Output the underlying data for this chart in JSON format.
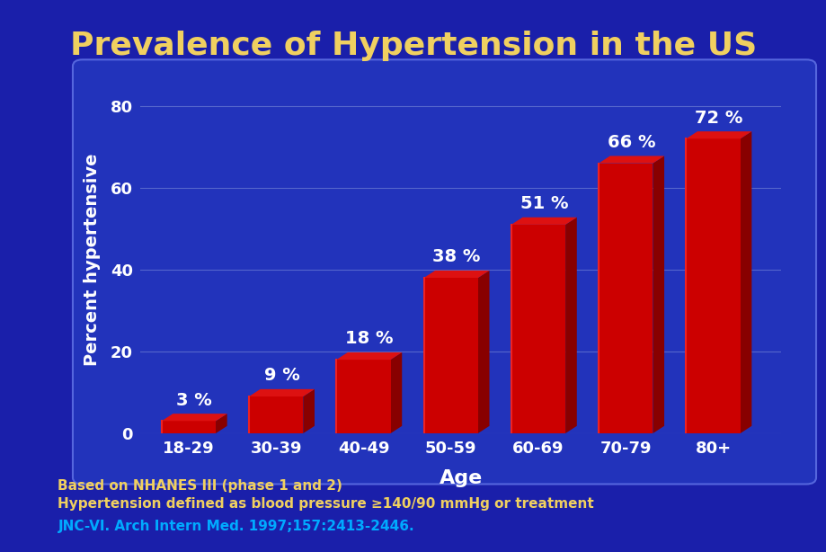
{
  "title": "Prevalence of Hypertension in the US",
  "categories": [
    "18-29",
    "30-39",
    "40-49",
    "50-59",
    "60-69",
    "70-79",
    "80+"
  ],
  "values": [
    3,
    9,
    18,
    38,
    51,
    66,
    72
  ],
  "xlabel": "Age",
  "ylabel": "Percent hypertensive",
  "ylim": [
    0,
    85
  ],
  "yticks": [
    0,
    20,
    40,
    60,
    80
  ],
  "background_color": "#1a1faa",
  "plot_bg_color": "#2233bb",
  "bar_face_color": "#cc0000",
  "bar_highlight_color": "#ee2222",
  "bar_dark_color": "#880000",
  "bar_top_color": "#dd1111",
  "title_color": "#f0d060",
  "axis_label_color": "#ffffff",
  "tick_label_color": "#ffffff",
  "bar_label_color": "#ffffff",
  "footer_color1": "#f0d060",
  "footer_color3": "#00aaff",
  "grid_color": "#5566cc",
  "border_color": "#4455bb",
  "footer_line1": "Based on NHANES III (phase 1 and 2)",
  "footer_line2": "Hypertension defined as blood pressure ≥140/90 mmHg or treatment",
  "footer_line3": "JNC-VI. Arch Intern Med. 1997;157:2413-2446.",
  "title_fontsize": 26,
  "axis_label_fontsize": 14,
  "tick_fontsize": 13,
  "bar_label_fontsize": 14,
  "footer_fontsize": 11
}
